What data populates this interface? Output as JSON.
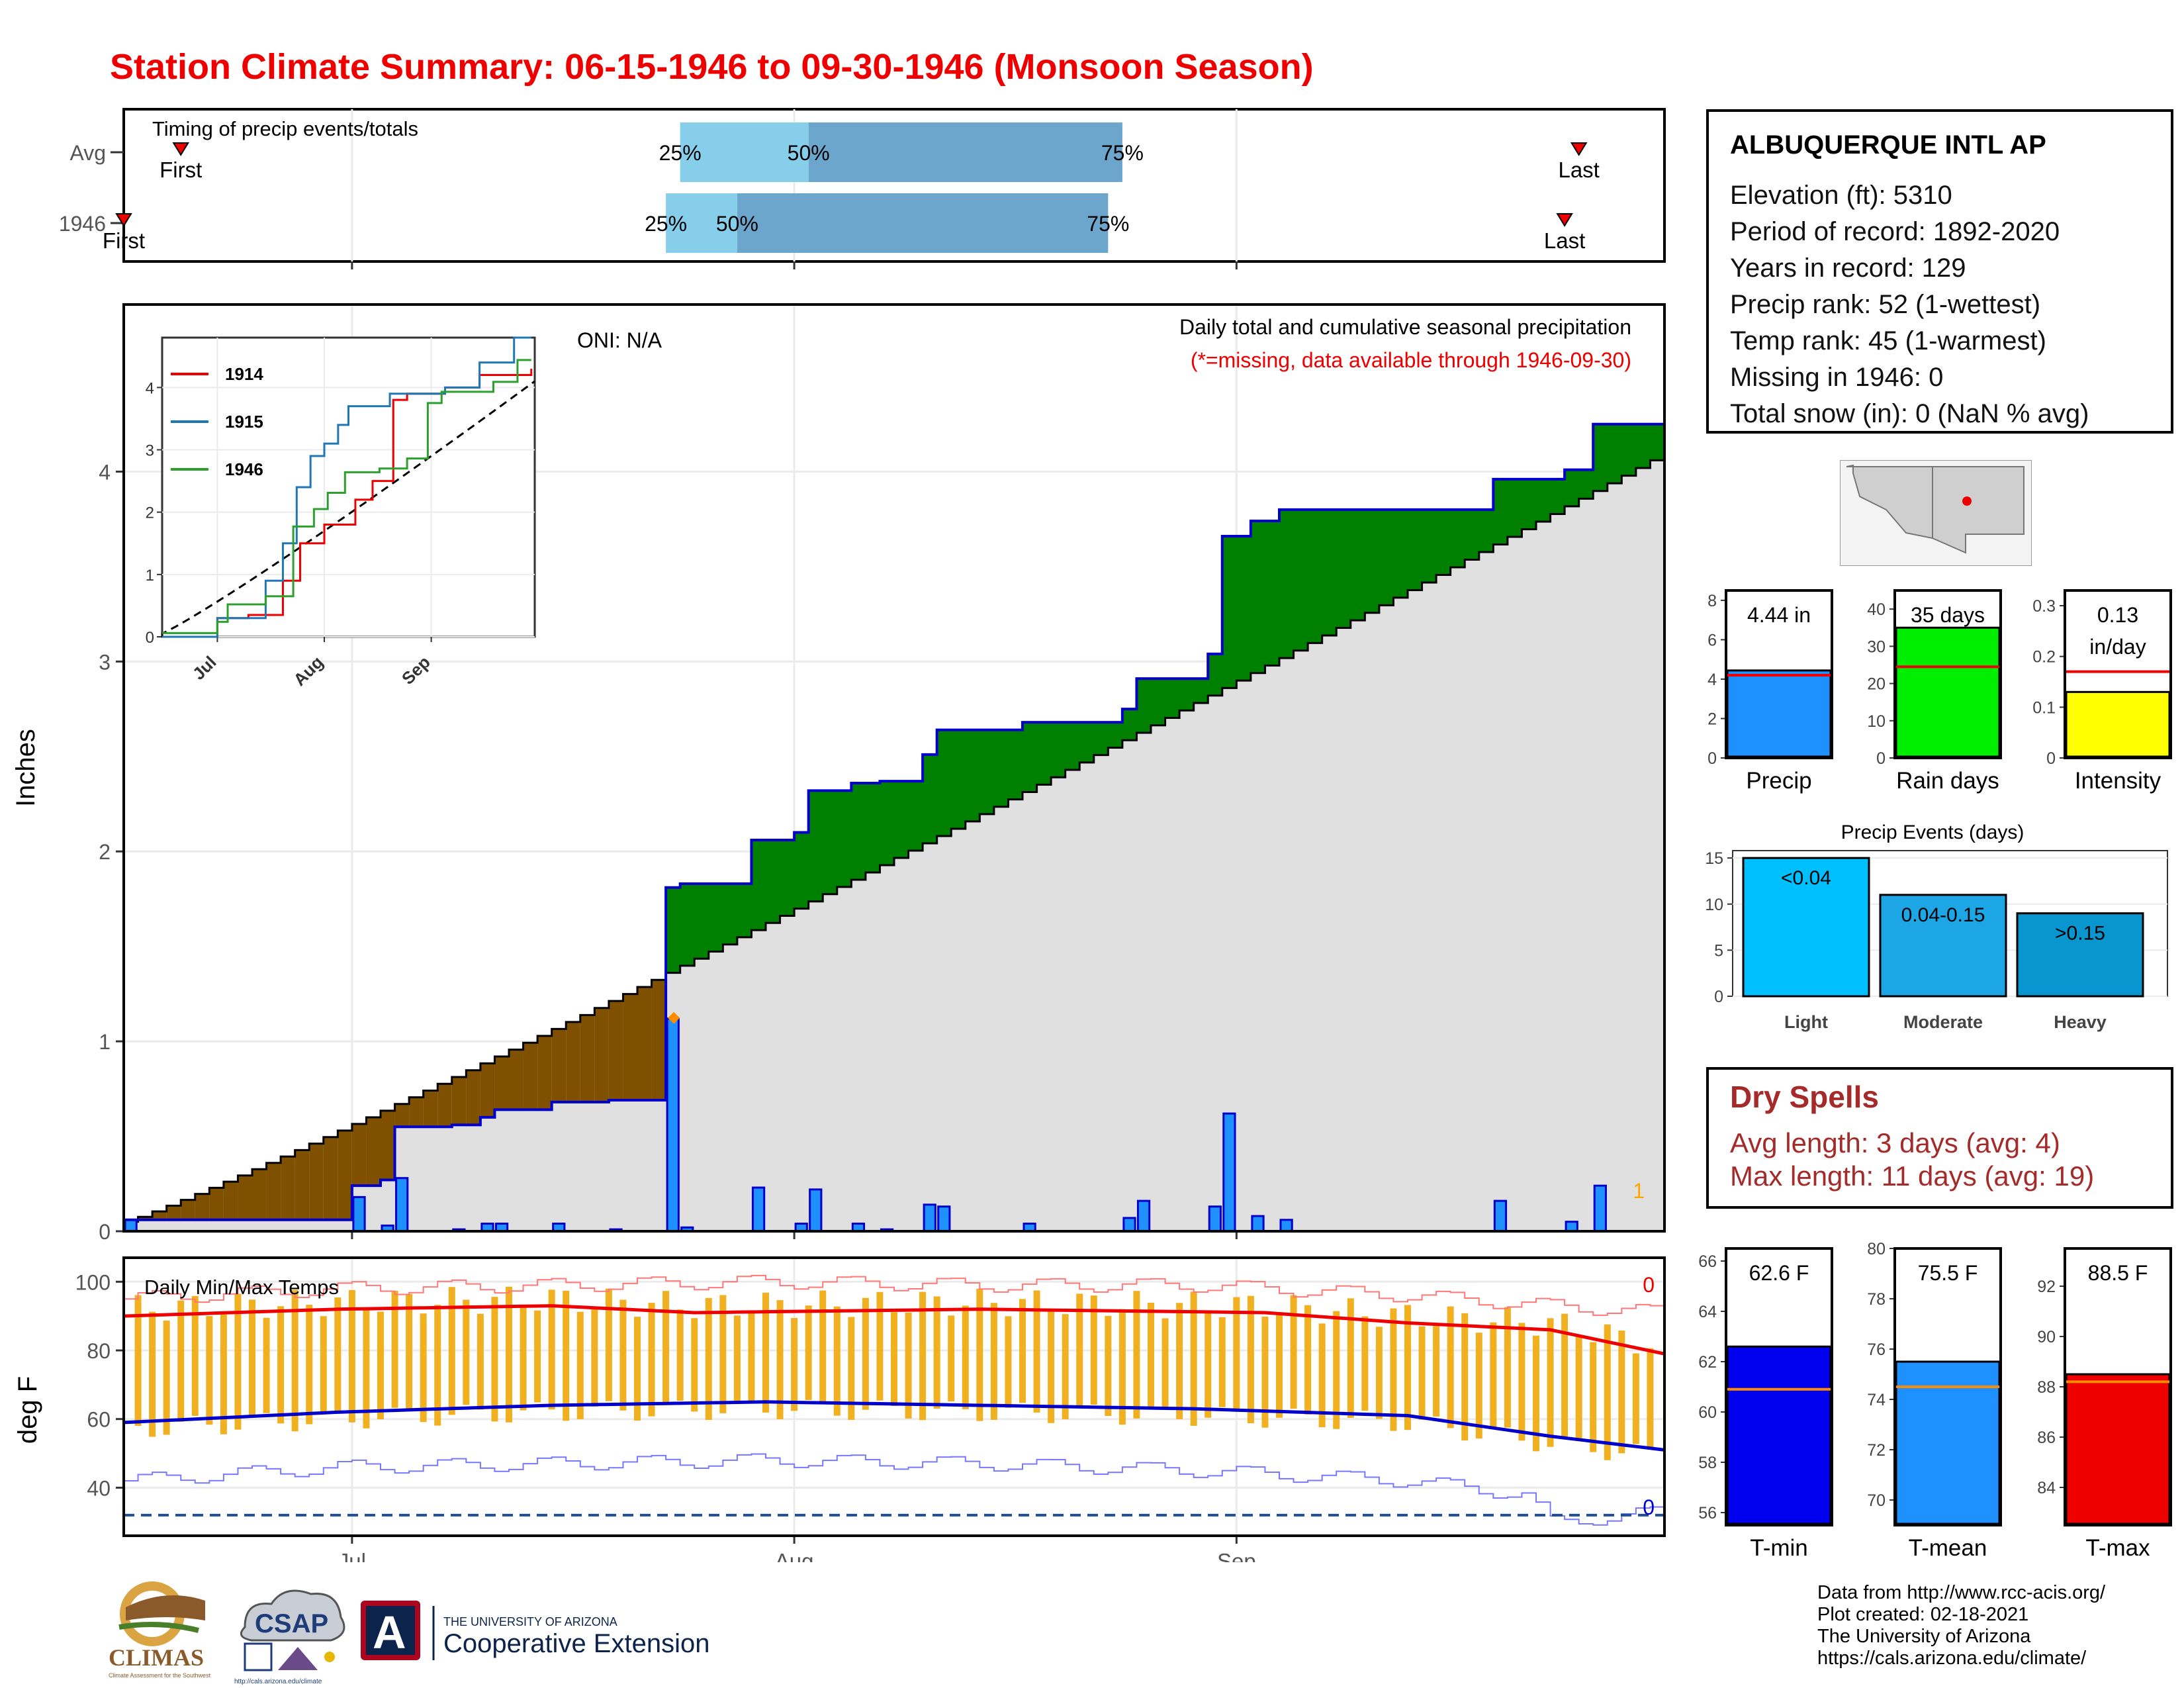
{
  "title": "Station Climate Summary: 06-15-1946 to 09-30-1946 (Monsoon Season)",
  "colors": {
    "title": "#ee0000",
    "cum_actual": "#0000cc",
    "surplus": "#008000",
    "deficit": "#7f5000",
    "normal_fill": "#e0e0e0",
    "daily_bar": "#1e90ff",
    "temp_bar": "#f0b020",
    "tmax_avg": "#ee0000",
    "tmin_avg": "#0000cc",
    "dry_spell": "#a52a2a"
  },
  "station": {
    "name": "ALBUQUERQUE INTL AP",
    "rows": [
      "Elevation (ft): 5310",
      "Period of record: 1892-2020",
      "Years in record: 129",
      "Precip rank: 52 (1-wettest)",
      "Temp rank: 45 (1-warmest)",
      "Missing in 1946: 0",
      "Total snow (in): 0 (NaN % avg)"
    ]
  },
  "dry_spells": {
    "heading": "Dry Spells",
    "avg": "Avg length: 3 days (avg: 4)",
    "max": "Max length: 11 days (avg: 19)"
  },
  "credits": [
    "Data from http://www.rcc-acis.org/",
    "Plot created: 02-18-2021",
    "The University of Arizona",
    "https://cals.arizona.edu/climate/"
  ],
  "logos": {
    "climas": "CLIMAS",
    "climas_sub": "Climate Assessment for the Southwest",
    "csap": "CSAP",
    "csap_url": "http://cals.arizona.edu/climate",
    "ua_letter": "A",
    "ua_line1": "THE UNIVERSITY OF ARIZONA",
    "ua_line2": "Cooperative Extension"
  },
  "chart_data": [
    {
      "id": "timing",
      "type": "bar",
      "title": "Timing of precip events/totals",
      "rows": [
        {
          "label": "Avg",
          "first": "06-19",
          "q25": "07-24",
          "q50": "08-02",
          "q75": "08-24",
          "last": "09-25",
          "first_label": "First",
          "last_label": "Last",
          "q25_label": "25%",
          "q50_label": "50%",
          "q75_label": "75%"
        },
        {
          "label": "1946",
          "first": "06-15",
          "q25": "07-23",
          "q50": "07-28",
          "q75": "08-23",
          "last": "09-24",
          "first_label": "First",
          "last_label": "Last",
          "q25_label": "25%",
          "q50_label": "50%",
          "q75_label": "75%"
        }
      ]
    },
    {
      "id": "precip",
      "type": "area",
      "title": "Daily total and cumulative seasonal precipitation",
      "subtitle": "(*=missing, data available through 1946-09-30)",
      "annotation": "ONI: N/A",
      "ylabel": "Inches",
      "ylim": [
        0,
        4.88
      ],
      "yticks": [
        0,
        1,
        2,
        3,
        4
      ],
      "xticks": [
        "Jul",
        "Aug",
        "Sep"
      ],
      "missing_count": "1",
      "normal_start": 0.05,
      "normal_end": 4.1,
      "daily": [
        [
          "06-15",
          0.06
        ],
        [
          "06-21",
          0.0
        ],
        [
          "07-01",
          0.18
        ],
        [
          "07-03",
          0.03
        ],
        [
          "07-04",
          0.28
        ],
        [
          "07-08",
          0.01
        ],
        [
          "07-10",
          0.04
        ],
        [
          "07-11",
          0.04
        ],
        [
          "07-15",
          0.04
        ],
        [
          "07-19",
          0.01
        ],
        [
          "07-23",
          1.12
        ],
        [
          "07-24",
          0.02
        ],
        [
          "07-29",
          0.23
        ],
        [
          "08-01",
          0.04
        ],
        [
          "08-02",
          0.22
        ],
        [
          "08-05",
          0.04
        ],
        [
          "08-07",
          0.01
        ],
        [
          "08-10",
          0.14
        ],
        [
          "08-11",
          0.13
        ],
        [
          "08-17",
          0.04
        ],
        [
          "08-24",
          0.07
        ],
        [
          "08-25",
          0.16
        ],
        [
          "08-30",
          0.13
        ],
        [
          "08-31",
          0.62
        ],
        [
          "09-02",
          0.08
        ],
        [
          "09-04",
          0.06
        ],
        [
          "09-19",
          0.16
        ],
        [
          "09-24",
          0.05
        ],
        [
          "09-26",
          0.24
        ]
      ],
      "inset": {
        "xticks": [
          "Jul",
          "Aug",
          "Sep"
        ],
        "yticks": [
          0,
          1,
          2,
          3,
          4
        ],
        "ylim": [
          0,
          4.8
        ],
        "series": [
          {
            "name": "1914",
            "color": "#ee0000",
            "points": [
              [
                "06-15",
                0
              ],
              [
                "07-01",
                0.3
              ],
              [
                "07-10",
                0.35
              ],
              [
                "07-20",
                0.9
              ],
              [
                "07-25",
                1.5
              ],
              [
                "08-01",
                1.8
              ],
              [
                "08-10",
                2.2
              ],
              [
                "08-15",
                2.5
              ],
              [
                "08-21",
                3.8
              ],
              [
                "08-25",
                3.9
              ],
              [
                "09-05",
                4.0
              ],
              [
                "09-15",
                4.2
              ],
              [
                "09-30",
                4.3
              ]
            ]
          },
          {
            "name": "1915",
            "color": "#1f77b4",
            "points": [
              [
                "06-15",
                0
              ],
              [
                "07-01",
                0.3
              ],
              [
                "07-10",
                0.3
              ],
              [
                "07-15",
                0.9
              ],
              [
                "07-20",
                1.5
              ],
              [
                "07-24",
                2.4
              ],
              [
                "07-28",
                2.9
              ],
              [
                "08-01",
                3.1
              ],
              [
                "08-05",
                3.4
              ],
              [
                "08-08",
                3.7
              ],
              [
                "08-20",
                3.9
              ],
              [
                "09-05",
                4.0
              ],
              [
                "09-15",
                4.4
              ],
              [
                "09-25",
                4.8
              ],
              [
                "09-30",
                4.8
              ]
            ]
          },
          {
            "name": "1946",
            "color": "#2ca02c",
            "points": [
              [
                "06-15",
                0.06
              ],
              [
                "07-01",
                0.24
              ],
              [
                "07-04",
                0.52
              ],
              [
                "07-15",
                0.65
              ],
              [
                "07-23",
                1.77
              ],
              [
                "07-29",
                2.05
              ],
              [
                "08-02",
                2.31
              ],
              [
                "08-07",
                2.64
              ],
              [
                "08-17",
                2.7
              ],
              [
                "08-25",
                2.86
              ],
              [
                "08-31",
                3.75
              ],
              [
                "09-04",
                3.93
              ],
              [
                "09-19",
                4.09
              ],
              [
                "09-26",
                4.44
              ],
              [
                "09-30",
                4.44
              ]
            ]
          }
        ]
      }
    },
    {
      "id": "temps",
      "type": "line",
      "title": "Daily Min/Max Temps",
      "ylabel": "deg F",
      "ylim": [
        26,
        107
      ],
      "yticks": [
        40,
        60,
        80,
        100
      ],
      "missing_top": "0",
      "missing_bottom": "0",
      "xticks": [
        "Jul",
        "Aug",
        "Sep"
      ],
      "freeze_line": 32,
      "series": [
        {
          "name": "avg tmax",
          "points": [
            [
              0,
              90
            ],
            [
              15,
              92
            ],
            [
              30,
              93
            ],
            [
              40,
              91
            ],
            [
              60,
              92
            ],
            [
              80,
              91
            ],
            [
              90,
              88
            ],
            [
              100,
              86
            ],
            [
              108,
              79
            ]
          ]
        },
        {
          "name": "avg tmin",
          "points": [
            [
              0,
              59
            ],
            [
              15,
              62
            ],
            [
              30,
              64
            ],
            [
              45,
              65
            ],
            [
              60,
              64
            ],
            [
              75,
              63
            ],
            [
              90,
              61
            ],
            [
              100,
              55
            ],
            [
              108,
              51
            ]
          ]
        },
        {
          "name": "record tmax",
          "points": [
            [
              0,
              95
            ],
            [
              15,
              98
            ],
            [
              30,
              99
            ],
            [
              45,
              100
            ],
            [
              60,
              99
            ],
            [
              75,
              99
            ],
            [
              90,
              96
            ],
            [
              100,
              93
            ],
            [
              108,
              91
            ]
          ]
        },
        {
          "name": "record tmin",
          "points": [
            [
              0,
              42
            ],
            [
              15,
              46
            ],
            [
              30,
              47
            ],
            [
              45,
              48
            ],
            [
              60,
              47
            ],
            [
              75,
              45
            ],
            [
              90,
              42
            ],
            [
              98,
              38
            ],
            [
              100,
              30
            ],
            [
              108,
              33
            ]
          ]
        }
      ]
    },
    {
      "id": "totals",
      "type": "bar",
      "bars": [
        {
          "name": "Precip",
          "label": "4.44 in",
          "value": 4.44,
          "avg": 4.2,
          "ylim": [
            0,
            8.5
          ],
          "yticks": [
            0,
            2,
            4,
            6,
            8
          ],
          "color": "#1e90ff",
          "avg_color": "#ee0000"
        },
        {
          "name": "Rain days",
          "label": "35 days",
          "value": 35,
          "avg": 24.5,
          "ylim": [
            0,
            45
          ],
          "yticks": [
            0,
            10,
            20,
            30,
            40
          ],
          "color": "#00ee00",
          "avg_color": "#ee0000"
        },
        {
          "name": "Intensity",
          "label": "0.13",
          "label2": "in/day",
          "value": 0.13,
          "avg": 0.17,
          "ylim": [
            0,
            0.33
          ],
          "yticks": [
            0.0,
            0.1,
            0.2,
            0.3
          ],
          "color": "#ffff00",
          "avg_color": "#ee0000"
        }
      ]
    },
    {
      "id": "events",
      "type": "bar",
      "title": "Precip Events (days)",
      "categories": [
        "Light",
        "Moderate",
        "Heavy"
      ],
      "labels": [
        "<0.04",
        "0.04-0.15",
        ">0.15"
      ],
      "values": [
        15,
        11,
        9
      ],
      "colors": [
        "#00bfff",
        "#1ca6e6",
        "#0996cf"
      ],
      "ylim": [
        0,
        15.8
      ],
      "yticks": [
        0,
        5,
        10,
        15
      ]
    },
    {
      "id": "tempsummary",
      "type": "bar",
      "bars": [
        {
          "name": "T-min",
          "label": "62.6 F",
          "value": 62.6,
          "avg": 60.9,
          "ylim": [
            55.5,
            66.5
          ],
          "yticks": [
            56,
            58,
            60,
            62,
            64,
            66
          ],
          "color": "#0000ee"
        },
        {
          "name": "T-mean",
          "label": "75.5 F",
          "value": 75.5,
          "avg": 74.5,
          "ylim": [
            69,
            80
          ],
          "yticks": [
            70,
            72,
            74,
            76,
            78,
            80
          ],
          "color": "#1e90ff"
        },
        {
          "name": "T-max",
          "label": "88.5 F",
          "value": 88.5,
          "avg": 88.2,
          "ylim": [
            82.5,
            93.5
          ],
          "yticks": [
            84,
            86,
            88,
            90,
            92
          ],
          "color": "#ee0000"
        }
      ]
    }
  ]
}
